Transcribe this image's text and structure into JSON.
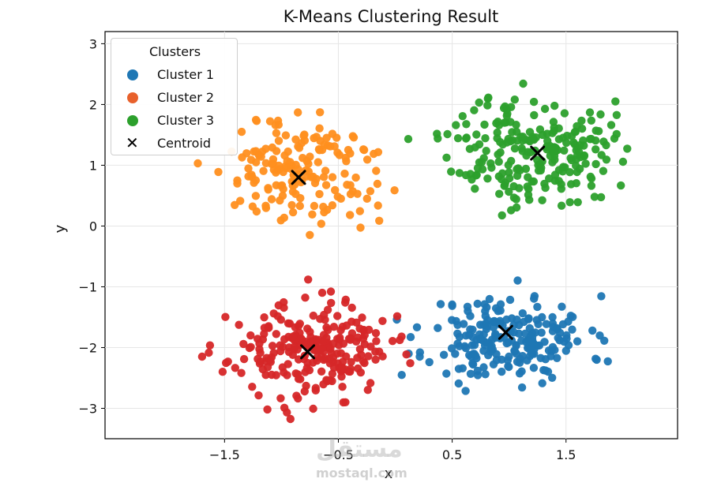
{
  "chart_data": {
    "type": "scatter",
    "title": "K-Means Clustering Result",
    "xlabel": "x",
    "ylabel": "y",
    "xlim": [
      -2.55,
      2.48
    ],
    "ylim": [
      -3.5,
      3.2
    ],
    "x_ticks": [
      -1.5,
      -0.5,
      0.5,
      1.5
    ],
    "x_tick_labels": [
      "−1.5",
      "−0.5",
      "0.5",
      "1.5"
    ],
    "x_ticks_extra": [
      0.5
    ],
    "x_ticks_extra_labels": [
      "0.5"
    ],
    "y_ticks": [
      -3,
      -2,
      -1,
      0,
      1,
      2,
      3
    ],
    "y_tick_labels": [
      "−3",
      "−2",
      "−1",
      "0",
      "1",
      "2",
      "3"
    ],
    "grid": true,
    "legend_title": "Clusters",
    "legend_placement": "top-left",
    "series": [
      {
        "name": "Cluster 1",
        "color": "#1f77b4",
        "center": [
          1.0,
          -1.85
        ],
        "spread": [
          0.35,
          0.35
        ],
        "count": 220,
        "seed": 11
      },
      {
        "name": "Cluster 2",
        "color": "#d62728",
        "center": [
          -0.75,
          -2.05
        ],
        "spread": [
          0.35,
          0.38
        ],
        "count": 240,
        "seed": 23
      },
      {
        "name": "Cluster 3",
        "color": "#2ca02c",
        "center": [
          1.2,
          1.25
        ],
        "spread": [
          0.35,
          0.45
        ],
        "count": 230,
        "seed": 37
      },
      {
        "name": "Cluster 2",
        "color": "#ff8f1f",
        "center": [
          -0.85,
          0.9
        ],
        "spread": [
          0.35,
          0.45
        ],
        "count": 170,
        "seed": 51
      }
    ],
    "centroids": [
      {
        "x": 0.97,
        "y": -1.75
      },
      {
        "x": -0.77,
        "y": -2.07
      },
      {
        "x": 1.25,
        "y": 1.2
      },
      {
        "x": -0.85,
        "y": 0.8
      }
    ],
    "legend_items": [
      {
        "label": "Cluster 1",
        "color": "#1f77b4",
        "marker": "dot"
      },
      {
        "label": "Cluster 2",
        "color": "#e8612c",
        "marker": "dot"
      },
      {
        "label": "Cluster 3",
        "color": "#2ca02c",
        "marker": "dot"
      },
      {
        "label": "Centroid",
        "color": "#000000",
        "marker": "x"
      }
    ]
  },
  "watermark": {
    "arabic": "مستقل",
    "latin": "mostaql.com"
  }
}
